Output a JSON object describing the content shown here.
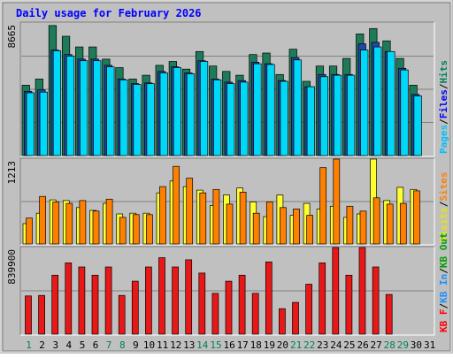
{
  "chart_data": {
    "type": "bar",
    "title": "Daily usage for February 2026",
    "days": [
      "1",
      "2",
      "3",
      "4",
      "5",
      "6",
      "7",
      "8",
      "9",
      "10",
      "11",
      "12",
      "13",
      "14",
      "15",
      "16",
      "17",
      "18",
      "19",
      "20",
      "21",
      "22",
      "23",
      "24",
      "25",
      "26",
      "27",
      "28",
      "29",
      "30",
      "31"
    ],
    "weekend_days": [
      "1",
      "7",
      "8",
      "14",
      "15",
      "21",
      "22",
      "28",
      "29"
    ],
    "panels": [
      {
        "id": "top",
        "scale_label": "8665",
        "ymax": 8665,
        "legend": [
          {
            "text": "Pages",
            "color": "#00C0FF"
          },
          {
            "text": "Files",
            "color": "#0000FF"
          },
          {
            "text": "Hits",
            "color": "#00805C"
          }
        ],
        "series": [
          {
            "name": "Hits",
            "color": "#1E7B59",
            "values": [
              4600,
              5000,
              8500,
              7800,
              7100,
              7100,
              6300,
              5750,
              5000,
              5250,
              5900,
              6150,
              5650,
              6800,
              5850,
              5500,
              5250,
              6600,
              6700,
              5300,
              6950,
              4850,
              5850,
              5850,
              6350,
              7950,
              8300,
              7500,
              6350,
              4600
            ]
          },
          {
            "name": "Files",
            "color": "#2347A8",
            "values": [
              4200,
              4300,
              6900,
              6600,
              6300,
              6300,
              5900,
              5000,
              4700,
              4750,
              5500,
              5800,
              5400,
              6200,
              5000,
              4800,
              4900,
              6100,
              6000,
              4900,
              6400,
              4500,
              5300,
              5300,
              5300,
              7300,
              7400,
              6800,
              5700,
              4000
            ]
          },
          {
            "name": "Pages",
            "color": "#00D8F8",
            "values": [
              4100,
              4150,
              6850,
              6500,
              6200,
              6200,
              5800,
              4950,
              4650,
              4700,
              5400,
              5750,
              5350,
              6150,
              4950,
              4700,
              4800,
              6000,
              5950,
              4850,
              6250,
              4500,
              5150,
              5250,
              5250,
              6900,
              7100,
              6800,
              5600,
              3900
            ]
          }
        ]
      },
      {
        "id": "middle",
        "scale_label": "1213",
        "ymax": 1213,
        "legend": [
          {
            "text": "Visits",
            "color": "#E8E800"
          },
          {
            "text": "Sites",
            "color": "#FF8000"
          }
        ],
        "series": [
          {
            "name": "Visits",
            "color": "#FFFF30",
            "values": [
              290,
              440,
              630,
              620,
              520,
              480,
              580,
              430,
              440,
              440,
              730,
              900,
              820,
              770,
              550,
              700,
              800,
              600,
              390,
              700,
              410,
              580,
              500,
              540,
              380,
              430,
              1213,
              620,
              810,
              780
            ]
          },
          {
            "name": "Sites",
            "color": "#FF8000",
            "values": [
              370,
              680,
              600,
              580,
              620,
              470,
              640,
              380,
              420,
              420,
              820,
              1110,
              940,
              730,
              780,
              570,
              740,
              440,
              600,
              520,
              500,
              410,
              1090,
              1330,
              540,
              470,
              660,
              570,
              580,
              760
            ]
          }
        ]
      },
      {
        "id": "bottom",
        "scale_label": "839900",
        "ymax": 839900,
        "legend": [
          {
            "text": "KB F",
            "color": "#FF0000"
          },
          {
            "text": "KB In",
            "color": "#1E90FF"
          },
          {
            "text": "KB Out",
            "color": "#00A000"
          }
        ],
        "series": [
          {
            "name": "KB F",
            "color": "#E81818",
            "values": [
              370000,
              375000,
              572000,
              691000,
              651000,
              572000,
              651000,
              375000,
              513000,
              651000,
              741000,
              651000,
              721000,
              592000,
              395000,
              513000,
              572000,
              395000,
              700000,
              247000,
              308000,
              484000,
              691000,
              1060000,
              572000,
              1080000,
              651000,
              385000
            ]
          }
        ]
      }
    ]
  }
}
